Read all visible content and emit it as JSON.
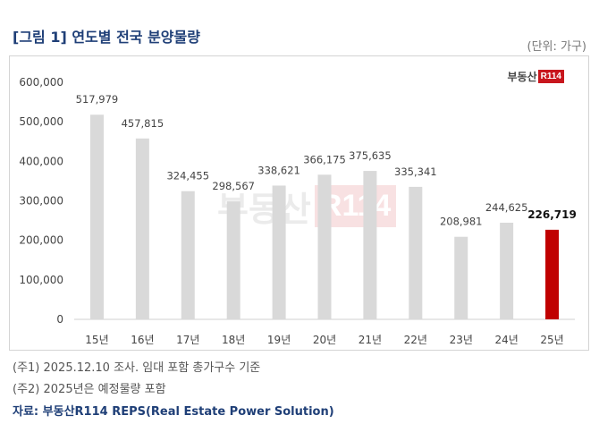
{
  "header": {
    "title": "[그림 1] 연도별 전국 분양물량",
    "unit": "(단위: 가구)"
  },
  "logo": {
    "text": "부동산",
    "box": "R114"
  },
  "chart_data": {
    "type": "bar",
    "categories": [
      "15년",
      "16년",
      "17년",
      "18년",
      "19년",
      "20년",
      "21년",
      "22년",
      "23년",
      "24년",
      "25년"
    ],
    "values": [
      517979,
      457815,
      324455,
      298567,
      338621,
      366175,
      375635,
      335341,
      208981,
      244625,
      226719
    ],
    "value_labels": [
      "517,979",
      "457,815",
      "324,455",
      "298,567",
      "338,621",
      "366,175",
      "375,635",
      "335,341",
      "208,981",
      "244,625",
      "226,719"
    ],
    "highlight_index": 10,
    "yticks": [
      "0",
      "100,000",
      "200,000",
      "300,000",
      "400,000",
      "500,000",
      "600,000"
    ],
    "ylim": [
      0,
      600000
    ],
    "grid": false,
    "colors": {
      "bar": "#d9d9d9",
      "highlight": "#c00000"
    }
  },
  "notes": {
    "note1": "(주1) 2025.12.10 조사. 임대 포함 총가구수 기준",
    "note2": "(주2) 2025년은 예정물량 포함",
    "source": "자료: 부동산R114 REPS(Real Estate Power Solution)"
  }
}
